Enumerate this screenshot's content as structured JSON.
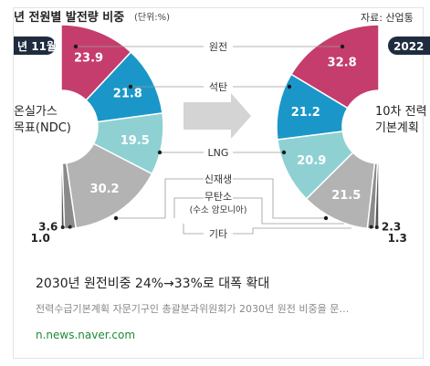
{
  "card": {
    "title": "2030년 원전비중 24%→33%로 대폭 확대",
    "description": "전력수급기본계획 자문기구인 총괄분과위원회가 2030년 원전 비중을 문…",
    "source": "n.news.naver.com"
  },
  "graphic": {
    "header_left": "년 전원별 발전량 비중",
    "header_unit": "(단위:%)",
    "header_right": "자료: 산업통",
    "left_tag": "년 11월",
    "right_tag": "2022",
    "left_center_line1": "온실가스",
    "left_center_line2": "목표(NDC)",
    "right_center_line1": "10차 전력",
    "right_center_line2": "기본계획",
    "legend": {
      "nuclear": "원전",
      "coal": "석탄",
      "lng": "LNG",
      "renewable": "신재생",
      "carbonfree_line1": "무탄소",
      "carbonfree_line2": "(수소 암모니아)",
      "other": "기타"
    },
    "colors": {
      "nuclear": "#c43d6c",
      "coal": "#1a97c8",
      "lng": "#8fd1d3",
      "renewable": "#b3b3b3",
      "carbonfree": "#8a8a8a",
      "other": "#595959"
    }
  },
  "chart_data": {
    "type": "pie",
    "series": [
      {
        "categories": [
          "원전",
          "석탄",
          "LNG",
          "신재생",
          "무탄소",
          "기타"
        ],
        "values": [
          23.9,
          21.8,
          19.5,
          30.2,
          3.6,
          1.0
        ],
        "labels": [
          "23.9",
          "21.8",
          "19.5",
          "30.2",
          "3.6",
          "1.0"
        ]
      },
      {
        "categories": [
          "원전",
          "석탄",
          "LNG",
          "신재생",
          "무탄소",
          "기타"
        ],
        "values": [
          32.8,
          21.2,
          20.9,
          21.5,
          2.3,
          1.3
        ],
        "labels": [
          "32.8",
          "21.2",
          "20.9",
          "21.5",
          "2.3",
          "1.3"
        ]
      }
    ]
  }
}
